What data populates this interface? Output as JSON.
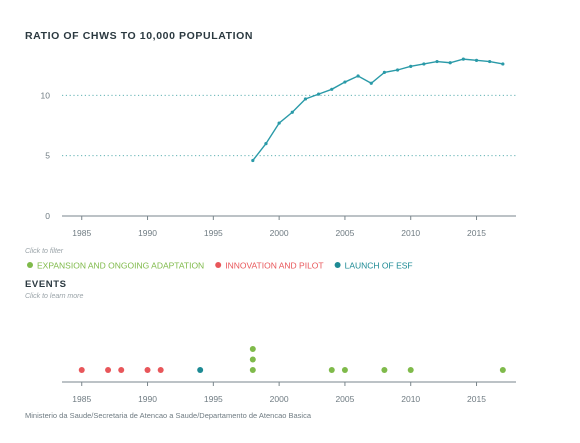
{
  "colors": {
    "line": "#2a9aa8",
    "axis": "#7a868c",
    "grid": "#4aa7a8",
    "expansion": "#7fba4a",
    "innovation": "#e8565a",
    "launch": "#1d8a94"
  },
  "chart_data": [
    {
      "type": "line",
      "title": "RATIO OF CHWS TO 10,000 POPULATION",
      "xlabel": "",
      "ylabel": "",
      "xlim": [
        1983.5,
        2018
      ],
      "ylim": [
        0,
        15
      ],
      "grid": "horizontal dotted",
      "x_ticks": [
        1985,
        1990,
        1995,
        2000,
        2005,
        2010,
        2015
      ],
      "y_ticks": [
        0,
        5,
        10
      ],
      "series": [
        {
          "x": [
            1998,
            1999,
            2000,
            2001,
            2002,
            2003,
            2004,
            2005,
            2006,
            2007,
            2008,
            2009,
            2010,
            2011,
            2012,
            2013,
            2014,
            2015,
            2016,
            2017
          ],
          "values": [
            4.6,
            6.0,
            7.7,
            8.6,
            9.7,
            10.1,
            10.5,
            11.1,
            11.6,
            11.0,
            11.9,
            12.1,
            12.4,
            12.6,
            12.8,
            12.7,
            13.0,
            12.9,
            12.8,
            12.6
          ]
        }
      ]
    },
    {
      "type": "scatter",
      "title": "EVENTS",
      "xlim": [
        1983.5,
        2018
      ],
      "x_ticks": [
        1985,
        1990,
        1995,
        2000,
        2005,
        2010,
        2015
      ],
      "legend_placement": "top-left",
      "series": [
        {
          "name": "EXPANSION AND ONGOING ADAPTATION",
          "x": [
            1998,
            1998,
            1998,
            2004,
            2005,
            2008,
            2010,
            2017
          ],
          "stack": [
            0,
            1,
            2,
            0,
            0,
            0,
            0,
            0
          ]
        },
        {
          "name": "INNOVATION AND PILOT",
          "x": [
            1985,
            1987,
            1988,
            1990,
            1991
          ],
          "stack": [
            0,
            0,
            0,
            0,
            0
          ]
        },
        {
          "name": "LAUNCH OF ESF",
          "x": [
            1994
          ],
          "stack": [
            0
          ]
        }
      ]
    }
  ],
  "legend": {
    "hint": "Click to filter",
    "items": [
      {
        "label": "EXPANSION AND ONGOING ADAPTATION",
        "color": "#7fba4a"
      },
      {
        "label": "INNOVATION AND PILOT",
        "color": "#e8565a"
      },
      {
        "label": "LAUNCH OF ESF",
        "color": "#1d8a94"
      }
    ]
  },
  "events": {
    "title": "EVENTS",
    "hint": "Click to learn more"
  },
  "source": "Ministerio da Saude/Secretaria de Atencao a Saude/Departamento de Atencao Basica"
}
